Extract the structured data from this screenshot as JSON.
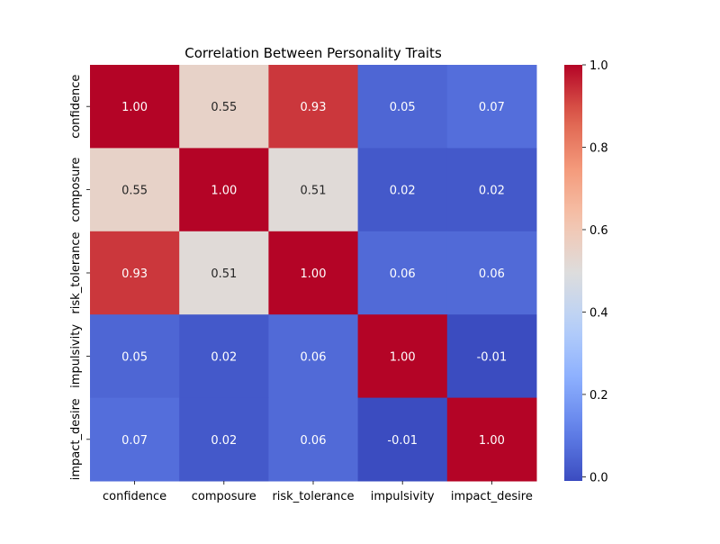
{
  "chart_data": {
    "type": "heatmap",
    "title": "Correlation Between Personality Traits",
    "xlabel": "",
    "ylabel": "",
    "x_categories": [
      "confidence",
      "composure",
      "risk_tolerance",
      "impulsivity",
      "impact_desire"
    ],
    "y_categories": [
      "confidence",
      "composure",
      "risk_tolerance",
      "impulsivity",
      "impact_desire"
    ],
    "values": [
      [
        1.0,
        0.55,
        0.93,
        0.05,
        0.07
      ],
      [
        0.55,
        1.0,
        0.51,
        0.02,
        0.02
      ],
      [
        0.93,
        0.51,
        1.0,
        0.06,
        0.06
      ],
      [
        0.05,
        0.02,
        0.06,
        1.0,
        -0.01
      ],
      [
        0.07,
        0.02,
        0.06,
        -0.01,
        1.0
      ]
    ],
    "annotations": [
      [
        "1.00",
        "0.55",
        "0.93",
        "0.05",
        "0.07"
      ],
      [
        "0.55",
        "1.00",
        "0.51",
        "0.02",
        "0.02"
      ],
      [
        "0.93",
        "0.51",
        "1.00",
        "0.06",
        "0.06"
      ],
      [
        "0.05",
        "0.02",
        "0.06",
        "1.00",
        "-0.01"
      ],
      [
        "0.07",
        "0.02",
        "0.06",
        "-0.01",
        "1.00"
      ]
    ],
    "colormap": "coolwarm",
    "vmin": -0.01,
    "vmax": 1.0,
    "colorbar": {
      "ticks": [
        0.0,
        0.2,
        0.4,
        0.6,
        0.8,
        1.0
      ],
      "tick_labels": [
        "0.0",
        "0.2",
        "0.4",
        "0.6",
        "0.8",
        "1.0"
      ]
    },
    "grid": false
  }
}
